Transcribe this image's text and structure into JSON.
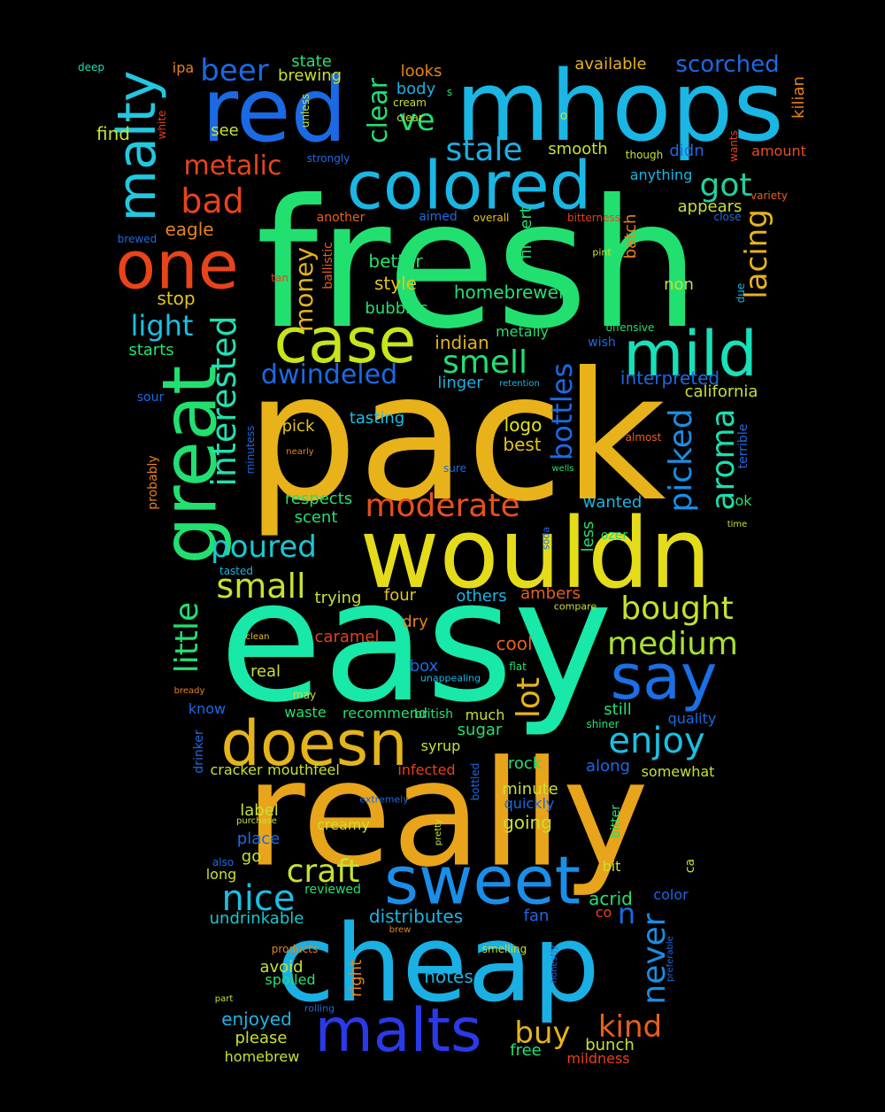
{
  "words": [
    {
      "text": "fresh",
      "color": "#22e070"
    },
    {
      "text": "pack",
      "color": "#e8b21a"
    },
    {
      "text": "easy",
      "color": "#18e8a8"
    },
    {
      "text": "really",
      "color": "#e8a41a"
    },
    {
      "text": "mhops",
      "color": "#1ab6e4"
    },
    {
      "text": "wouldn",
      "color": "#e4dc1a"
    },
    {
      "text": "cheap",
      "color": "#1ab0e4"
    },
    {
      "text": "red",
      "color": "#1a6ae4"
    },
    {
      "text": "colored",
      "color": "#1ab6e4"
    },
    {
      "text": "sweet",
      "color": "#1a8ee8"
    },
    {
      "text": "doesn",
      "color": "#e4b41a"
    },
    {
      "text": "great",
      "color": "#22e070"
    },
    {
      "text": "malts",
      "color": "#2a3ae8"
    },
    {
      "text": "case",
      "color": "#c8e41a"
    },
    {
      "text": "mild",
      "color": "#18e0b8"
    },
    {
      "text": "one",
      "color": "#e8441a"
    },
    {
      "text": "malty",
      "color": "#22c8e0"
    },
    {
      "text": "say",
      "color": "#1a70e4"
    },
    {
      "text": "interested",
      "color": "#22e0b0"
    },
    {
      "text": "bought",
      "color": "#c8e030"
    },
    {
      "text": "medium",
      "color": "#a8e030"
    },
    {
      "text": "enjoy",
      "color": "#1ac0e4"
    },
    {
      "text": "moderate",
      "color": "#e8501a"
    },
    {
      "text": "craft",
      "color": "#c8e030"
    },
    {
      "text": "nice",
      "color": "#1ac0e4"
    },
    {
      "text": "small",
      "color": "#c8e030"
    },
    {
      "text": "poured",
      "color": "#1ac8d0"
    },
    {
      "text": "little",
      "color": "#22e070"
    },
    {
      "text": "picked",
      "color": "#1a8ee4"
    },
    {
      "text": "aroma",
      "color": "#18e0b0"
    },
    {
      "text": "lacing",
      "color": "#e8b41a"
    },
    {
      "text": "bottles",
      "color": "#1a6ae4"
    },
    {
      "text": "smell",
      "color": "#22e070"
    },
    {
      "text": "stale",
      "color": "#1ab0e4"
    },
    {
      "text": "metalic",
      "color": "#e8441a"
    },
    {
      "text": "bad",
      "color": "#e8441a"
    },
    {
      "text": "got",
      "color": "#22d0a0"
    },
    {
      "text": "beer",
      "color": "#1a6ae4"
    },
    {
      "text": "light",
      "color": "#1ac0e4"
    },
    {
      "text": "dwindeled",
      "color": "#1a6ae4"
    },
    {
      "text": "never",
      "color": "#1a8ee4"
    },
    {
      "text": "buy",
      "color": "#e4b41a"
    },
    {
      "text": "kind",
      "color": "#e8601a"
    },
    {
      "text": "lot",
      "color": "#e8b41a"
    },
    {
      "text": "scorched",
      "color": "#1a6ae4"
    },
    {
      "text": "clear",
      "color": "#22e070"
    },
    {
      "text": "ve",
      "color": "#22e070"
    },
    {
      "text": "money",
      "color": "#e4b41a"
    },
    {
      "text": "n",
      "color": "#1a6ae4"
    },
    {
      "text": "homebrewer",
      "color": "#22e070"
    },
    {
      "text": "acrid",
      "color": "#22e070"
    },
    {
      "text": "distributes",
      "color": "#1ab6e4"
    },
    {
      "text": "undrinkable",
      "color": "#1ac8d0"
    },
    {
      "text": "logo",
      "color": "#e8e41a"
    },
    {
      "text": "best",
      "color": "#e4c41a"
    },
    {
      "text": "pick",
      "color": "#e4c41a"
    },
    {
      "text": "tasting",
      "color": "#1ac0e4"
    },
    {
      "text": "style",
      "color": "#e4c41a"
    },
    {
      "text": "better",
      "color": "#22e070"
    },
    {
      "text": "bubbles",
      "color": "#22e070"
    },
    {
      "text": "indian",
      "color": "#e4b41a"
    },
    {
      "text": "linger",
      "color": "#1ab0e4"
    },
    {
      "text": "metally",
      "color": "#22e070"
    },
    {
      "text": "california",
      "color": "#c8e030"
    },
    {
      "text": "interpreted",
      "color": "#1a6ae4"
    },
    {
      "text": "respects",
      "color": "#22e070"
    },
    {
      "text": "scent",
      "color": "#22e070"
    },
    {
      "text": "stop",
      "color": "#e4c41a"
    },
    {
      "text": "starts",
      "color": "#22e070"
    },
    {
      "text": "eagle",
      "color": "#e8841a"
    },
    {
      "text": "find",
      "color": "#c8e030"
    },
    {
      "text": "see",
      "color": "#c8e030"
    },
    {
      "text": "state",
      "color": "#22e070"
    },
    {
      "text": "brewing",
      "color": "#c8e030"
    },
    {
      "text": "looks",
      "color": "#e8841a"
    },
    {
      "text": "body",
      "color": "#1ab0e4"
    },
    {
      "text": "available",
      "color": "#e4b41a"
    },
    {
      "text": "smooth",
      "color": "#c8e030"
    },
    {
      "text": "didn",
      "color": "#1a6ae4"
    },
    {
      "text": "anything",
      "color": "#1ab6e4"
    },
    {
      "text": "appears",
      "color": "#c8e030"
    },
    {
      "text": "amount",
      "color": "#e8501a"
    },
    {
      "text": "kilian",
      "color": "#e8841a"
    },
    {
      "text": "non",
      "color": "#c8e030"
    },
    {
      "text": "batch",
      "color": "#e8841a"
    },
    {
      "text": "fingert",
      "color": "#22e070"
    },
    {
      "text": "ipa",
      "color": "#e8841a"
    },
    {
      "text": "deep",
      "color": "#18e0b0"
    },
    {
      "text": "wanted",
      "color": "#1ab6e4"
    },
    {
      "text": "ozer",
      "color": "#22e070"
    },
    {
      "text": "ok",
      "color": "#22e070"
    },
    {
      "text": "less",
      "color": "#22e070"
    },
    {
      "text": "four",
      "color": "#e4c41a"
    },
    {
      "text": "trying",
      "color": "#c8e030"
    },
    {
      "text": "others",
      "color": "#1ab6e4"
    },
    {
      "text": "ambers",
      "color": "#e8601a"
    },
    {
      "text": "caramel",
      "color": "#e8401a"
    },
    {
      "text": "dry",
      "color": "#e8841a"
    },
    {
      "text": "cool",
      "color": "#e8601a"
    },
    {
      "text": "box",
      "color": "#1a6ae4"
    },
    {
      "text": "real",
      "color": "#c8e030"
    },
    {
      "text": "know",
      "color": "#1a6ae4"
    },
    {
      "text": "waste",
      "color": "#22e070"
    },
    {
      "text": "recommend",
      "color": "#22e070"
    },
    {
      "text": "british",
      "color": "#22e070"
    },
    {
      "text": "much",
      "color": "#c8e030"
    },
    {
      "text": "still",
      "color": "#22e070"
    },
    {
      "text": "quality",
      "color": "#1a6ae4"
    },
    {
      "text": "sugar",
      "color": "#22e070"
    },
    {
      "text": "syrup",
      "color": "#c8e030"
    },
    {
      "text": "infected",
      "color": "#e8401a"
    },
    {
      "text": "rock",
      "color": "#22e070"
    },
    {
      "text": "along",
      "color": "#1a6ae4"
    },
    {
      "text": "somewhat",
      "color": "#c8e030"
    },
    {
      "text": "minute",
      "color": "#c8e030"
    },
    {
      "text": "quickly",
      "color": "#1a6ae4"
    },
    {
      "text": "cracker",
      "color": "#c8e030"
    },
    {
      "text": "mouthfeel",
      "color": "#c8e030"
    },
    {
      "text": "label",
      "color": "#c8e030"
    },
    {
      "text": "creamy",
      "color": "#c8e030"
    },
    {
      "text": "place",
      "color": "#1a6ae4"
    },
    {
      "text": "going",
      "color": "#c8e030"
    },
    {
      "text": "go",
      "color": "#c8e030"
    },
    {
      "text": "long",
      "color": "#c8e030"
    },
    {
      "text": "bit",
      "color": "#c8e030"
    },
    {
      "text": "color",
      "color": "#1a6ae4"
    },
    {
      "text": "fan",
      "color": "#1a6ae4"
    },
    {
      "text": "co",
      "color": "#e8401a"
    },
    {
      "text": "avoid",
      "color": "#c8e030"
    },
    {
      "text": "spoiled",
      "color": "#22e070"
    },
    {
      "text": "notes",
      "color": "#1ab6e4"
    },
    {
      "text": "right",
      "color": "#e8841a"
    },
    {
      "text": "enjoyed",
      "color": "#1ab6e4"
    },
    {
      "text": "please",
      "color": "#c8e030"
    },
    {
      "text": "homebrew",
      "color": "#c8e030"
    },
    {
      "text": "free",
      "color": "#22e070"
    },
    {
      "text": "bunch",
      "color": "#c8e030"
    },
    {
      "text": "mildness",
      "color": "#e8401a"
    },
    {
      "text": "reviewed",
      "color": "#22e070"
    },
    {
      "text": "products",
      "color": "#e8841a"
    },
    {
      "text": "smelling",
      "color": "#c8e030"
    },
    {
      "text": "honestly",
      "color": "#1a6ae4"
    },
    {
      "text": "preferable",
      "color": "#1a6ae4"
    },
    {
      "text": "part",
      "color": "#c8e030"
    },
    {
      "text": "rolling",
      "color": "#1a6ae4"
    },
    {
      "text": "brew",
      "color": "#e8841a"
    },
    {
      "text": "ca",
      "color": "#c8e030"
    },
    {
      "text": "bitter",
      "color": "#22e070"
    },
    {
      "text": "pretty",
      "color": "#c8e030"
    },
    {
      "text": "bottled",
      "color": "#1a6ae4"
    },
    {
      "text": "extremely",
      "color": "#1a6ae4"
    },
    {
      "text": "purchase",
      "color": "#c8e030"
    },
    {
      "text": "also",
      "color": "#1a6ae4"
    },
    {
      "text": "drinker",
      "color": "#1a6ae4"
    },
    {
      "text": "bready",
      "color": "#e8841a"
    },
    {
      "text": "may",
      "color": "#c8e030"
    },
    {
      "text": "unappealing",
      "color": "#1ab6e4"
    },
    {
      "text": "flat",
      "color": "#22e070"
    },
    {
      "text": "shiner",
      "color": "#22e070"
    },
    {
      "text": "clean",
      "color": "#e4c41a"
    },
    {
      "text": "compare",
      "color": "#c8e030"
    },
    {
      "text": "tasted",
      "color": "#1ab6e4"
    },
    {
      "text": "soda",
      "color": "#1a6ae4"
    },
    {
      "text": "time",
      "color": "#c8e030"
    },
    {
      "text": "terrible",
      "color": "#1a6ae4"
    },
    {
      "text": "almost",
      "color": "#e8601a"
    },
    {
      "text": "wells",
      "color": "#22e070"
    },
    {
      "text": "sure",
      "color": "#1a6ae4"
    },
    {
      "text": "nearly",
      "color": "#e8841a"
    },
    {
      "text": "minutess",
      "color": "#1a6ae4"
    },
    {
      "text": "probably",
      "color": "#e8841a"
    },
    {
      "text": "sour",
      "color": "#1a6ae4"
    },
    {
      "text": "retention",
      "color": "#1ab6e4"
    },
    {
      "text": "wish",
      "color": "#1a6ae4"
    },
    {
      "text": "offensive",
      "color": "#22e070"
    },
    {
      "text": "due",
      "color": "#1ab6e4"
    },
    {
      "text": "pint",
      "color": "#c8e030"
    },
    {
      "text": "bitterness",
      "color": "#e8401a"
    },
    {
      "text": "overall",
      "color": "#e4c41a"
    },
    {
      "text": "aimed",
      "color": "#1a6ae4"
    },
    {
      "text": "another",
      "color": "#e8601a"
    },
    {
      "text": "ballistic",
      "color": "#e8601a"
    },
    {
      "text": "tan",
      "color": "#e8401a"
    },
    {
      "text": "brewed",
      "color": "#1a6ae4"
    },
    {
      "text": "white",
      "color": "#e8401a"
    },
    {
      "text": "strongly",
      "color": "#1a6ae4"
    },
    {
      "text": "unless",
      "color": "#c8e030"
    },
    {
      "text": "cream",
      "color": "#c8e030"
    },
    {
      "text": "clear2",
      "color": "#c8e030"
    },
    {
      "text": "s",
      "color": "#22e070"
    },
    {
      "text": "o",
      "color": "#c8e030"
    },
    {
      "text": "though",
      "color": "#c8e030"
    },
    {
      "text": "wants",
      "color": "#e8401a"
    },
    {
      "text": "variety",
      "color": "#e8601a"
    },
    {
      "text": "close",
      "color": "#1a6ae4"
    }
  ]
}
